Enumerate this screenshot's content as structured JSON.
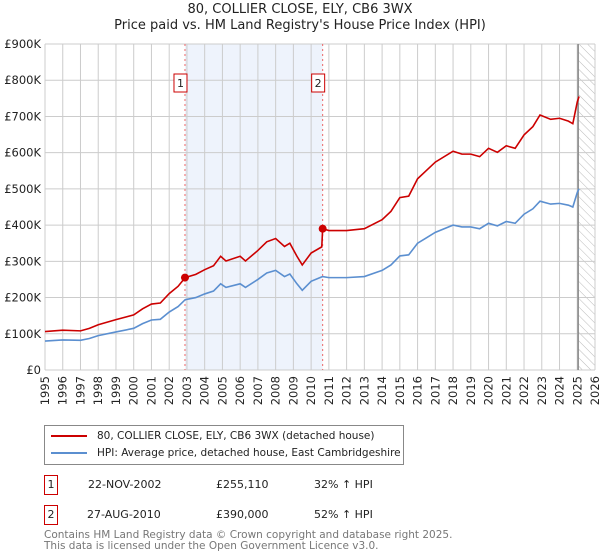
{
  "title": "80, COLLIER CLOSE, ELY, CB6 3WX",
  "subtitle": "Price paid vs. HM Land Registry's House Price Index (HPI)",
  "chart_data": {
    "type": "line",
    "title": "80, COLLIER CLOSE, ELY, CB6 3WX",
    "subtitle": "Price paid vs. HM Land Registry's House Price Index (HPI)",
    "xlim": [
      1995,
      2026
    ],
    "ylim": [
      0,
      900000
    ],
    "x_ticks": [
      "1995",
      "1996",
      "1997",
      "1998",
      "1999",
      "2000",
      "2001",
      "2002",
      "2003",
      "2004",
      "2005",
      "2006",
      "2007",
      "2008",
      "2009",
      "2010",
      "2011",
      "2012",
      "2013",
      "2014",
      "2015",
      "2016",
      "2017",
      "2018",
      "2019",
      "2020",
      "2021",
      "2022",
      "2023",
      "2024",
      "2025",
      "2026"
    ],
    "y_ticks": [
      "£0",
      "£100K",
      "£200K",
      "£300K",
      "£400K",
      "£500K",
      "£600K",
      "£700K",
      "£800K",
      "£900K"
    ],
    "grid": true,
    "series": [
      {
        "name": "80, COLLIER CLOSE, ELY, CB6 3WX (detached house)",
        "color": "#cc0000",
        "x": [
          1995,
          1996,
          1997,
          1997.5,
          1998,
          1999,
          2000,
          2000.5,
          2001,
          2001.5,
          2002,
          2002.5,
          2002.9,
          2003.5,
          2004,
          2004.5,
          2004.9,
          2005.2,
          2006,
          2006.3,
          2007,
          2007.5,
          2008,
          2008.5,
          2008.8,
          2009.2,
          2009.5,
          2010,
          2010.6,
          2010.65,
          2011,
          2012,
          2013,
          2014,
          2014.5,
          2015,
          2015.5,
          2016,
          2016.5,
          2017,
          2018,
          2018.5,
          2019,
          2019.5,
          2020,
          2020.5,
          2021,
          2021.5,
          2022,
          2022.5,
          2022.9,
          2023.5,
          2024,
          2024.5,
          2024.75,
          2025,
          2025.1
        ],
        "y": [
          106000,
          110000,
          108000,
          115000,
          125000,
          139000,
          152000,
          169000,
          182000,
          185000,
          211000,
          231000,
          255110,
          264000,
          277000,
          288000,
          314000,
          301000,
          314000,
          301000,
          330000,
          354000,
          363000,
          341000,
          350000,
          314000,
          290000,
          323000,
          340000,
          390000,
          385000,
          385000,
          390000,
          415000,
          438000,
          476000,
          480000,
          528000,
          551000,
          574000,
          604000,
          596000,
          596000,
          589000,
          612000,
          601000,
          619000,
          612000,
          649000,
          672000,
          704000,
          692000,
          695000,
          687000,
          680000,
          740000,
          755000
        ]
      },
      {
        "name": "HPI: Average price, detached house, East Cambridgeshire",
        "color": "#5b8fd0",
        "x": [
          1995,
          1996,
          1997,
          1997.5,
          1998,
          1999,
          2000,
          2000.5,
          2001,
          2001.5,
          2002,
          2002.5,
          2002.9,
          2003.5,
          2004,
          2004.5,
          2004.9,
          2005.2,
          2006,
          2006.3,
          2007,
          2007.5,
          2008,
          2008.5,
          2008.8,
          2009.2,
          2009.5,
          2010,
          2010.6,
          2010.65,
          2011,
          2012,
          2013,
          2014,
          2014.5,
          2015,
          2015.5,
          2016,
          2016.5,
          2017,
          2018,
          2018.5,
          2019,
          2019.5,
          2020,
          2020.5,
          2021,
          2021.5,
          2022,
          2022.5,
          2022.9,
          2023.5,
          2024,
          2024.5,
          2024.75,
          2025,
          2025.1
        ],
        "y": [
          80000,
          83000,
          82000,
          87000,
          95000,
          105000,
          115000,
          128000,
          138000,
          140000,
          160000,
          175000,
          194000,
          200000,
          210000,
          218000,
          238000,
          228000,
          238000,
          228000,
          250000,
          268000,
          275000,
          258000,
          265000,
          238000,
          220000,
          245000,
          257000,
          258000,
          255000,
          255000,
          258000,
          275000,
          290000,
          315000,
          318000,
          350000,
          365000,
          380000,
          400000,
          395000,
          395000,
          390000,
          405000,
          398000,
          410000,
          405000,
          430000,
          445000,
          466000,
          458000,
          460000,
          455000,
          450000,
          490000,
          500000
        ]
      }
    ],
    "sales": [
      {
        "label": "1",
        "x": 2002.89,
        "y": 255110
      },
      {
        "label": "2",
        "x": 2010.65,
        "y": 390000
      }
    ],
    "shaded_range": [
      2002.89,
      2010.65
    ],
    "forecast_from": 2025.05
  },
  "legend": {
    "items": [
      "80, COLLIER CLOSE, ELY, CB6 3WX (detached house)",
      "HPI: Average price, detached house, East Cambridgeshire"
    ]
  },
  "transactions": [
    {
      "num": "1",
      "date": "22-NOV-2002",
      "price": "£255,110",
      "hpi": "32% ↑ HPI"
    },
    {
      "num": "2",
      "date": "27-AUG-2010",
      "price": "£390,000",
      "hpi": "52% ↑ HPI"
    }
  ],
  "footer": {
    "line1": "Contains HM Land Registry data © Crown copyright and database right 2025.",
    "line2": "This data is licensed under the Open Government Licence v3.0."
  }
}
